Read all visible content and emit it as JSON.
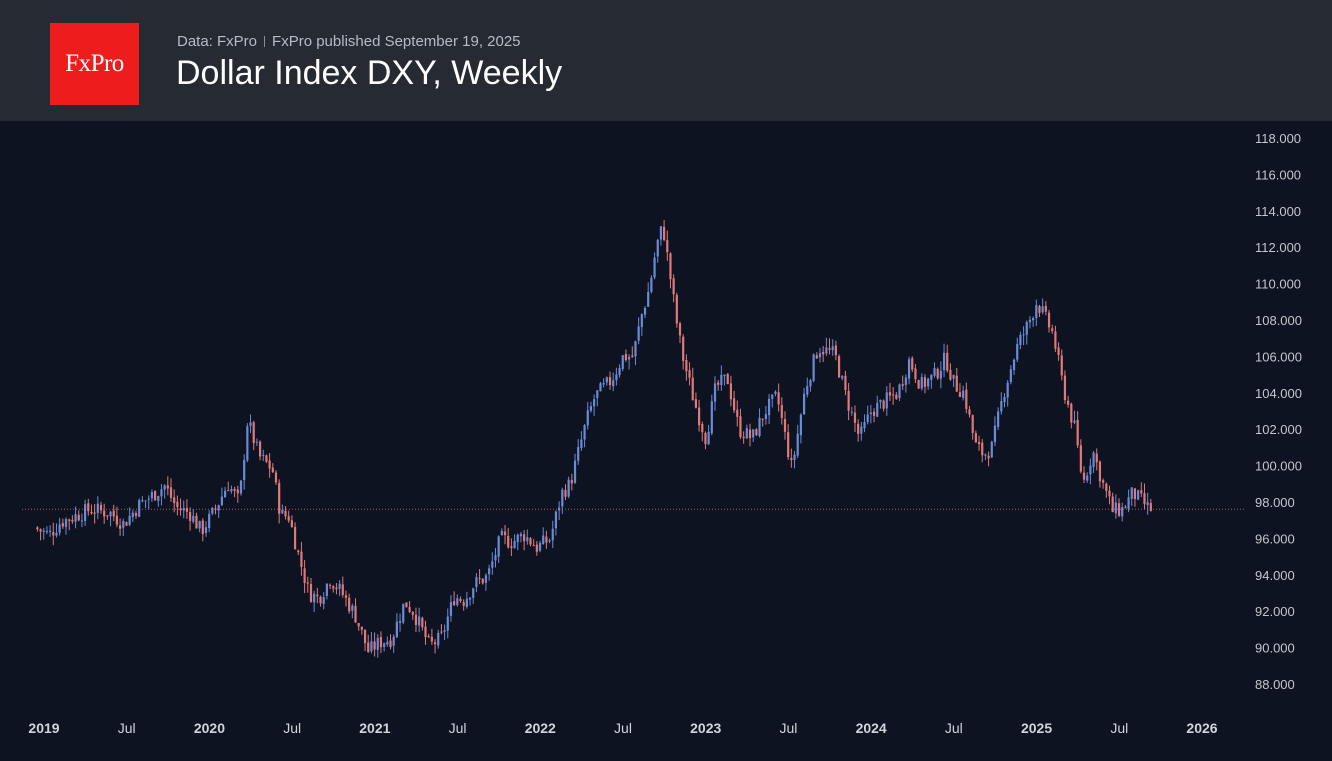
{
  "header": {
    "logo_text": "FxPro",
    "data_source": "Data: FxPro",
    "published": "FxPro published September 19, 2025",
    "title": "Dollar Index DXY, Weekly"
  },
  "colors": {
    "header_bg": "#262a33",
    "chart_bg": "#0d1321",
    "logo_bg": "#ee1c1c",
    "up": "#6b8bd6",
    "down": "#e07a78",
    "price_line": "#e07a78"
  },
  "chart_data": {
    "type": "candlestick",
    "title": "Dollar Index DXY, Weekly",
    "timeframe": "Weekly",
    "ylim": [
      87,
      118.5
    ],
    "y_ticks": [
      "118.000",
      "116.000",
      "114.000",
      "112.000",
      "110.000",
      "108.000",
      "106.000",
      "104.000",
      "102.000",
      "100.000",
      "98.000",
      "96.000",
      "94.000",
      "92.000",
      "90.000",
      "88.000"
    ],
    "x_range": [
      2018.96,
      2026.35
    ],
    "x_ticks": [
      {
        "label": "2019",
        "t": 2019.0,
        "major": true
      },
      {
        "label": "Jul",
        "t": 2019.5,
        "major": false
      },
      {
        "label": "2020",
        "t": 2020.0,
        "major": true
      },
      {
        "label": "Jul",
        "t": 2020.5,
        "major": false
      },
      {
        "label": "2021",
        "t": 2021.0,
        "major": true
      },
      {
        "label": "Jul",
        "t": 2021.5,
        "major": false
      },
      {
        "label": "2022",
        "t": 2022.0,
        "major": true
      },
      {
        "label": "Jul",
        "t": 2022.5,
        "major": false
      },
      {
        "label": "2023",
        "t": 2023.0,
        "major": true
      },
      {
        "label": "Jul",
        "t": 2023.5,
        "major": false
      },
      {
        "label": "2024",
        "t": 2024.0,
        "major": true
      },
      {
        "label": "Jul",
        "t": 2024.5,
        "major": false
      },
      {
        "label": "2025",
        "t": 2025.0,
        "major": true
      },
      {
        "label": "Jul",
        "t": 2025.5,
        "major": false
      },
      {
        "label": "2026",
        "t": 2026.0,
        "major": true
      }
    ],
    "price_line": 97.6,
    "series_anchors": {
      "t": [
        2018.96,
        2019.05,
        2019.12,
        2019.2,
        2019.3,
        2019.42,
        2019.5,
        2019.6,
        2019.68,
        2019.75,
        2019.82,
        2019.9,
        2019.97,
        2020.05,
        2020.13,
        2020.2,
        2020.25,
        2020.32,
        2020.4,
        2020.45,
        2020.5,
        2020.56,
        2020.62,
        2020.68,
        2020.75,
        2020.82,
        2020.9,
        2020.98,
        2021.05,
        2021.12,
        2021.2,
        2021.25,
        2021.35,
        2021.42,
        2021.5,
        2021.56,
        2021.62,
        2021.7,
        2021.78,
        2021.85,
        2021.92,
        2022.0,
        2022.08,
        2022.15,
        2022.2,
        2022.3,
        2022.35,
        2022.45,
        2022.52,
        2022.58,
        2022.63,
        2022.68,
        2022.72,
        2022.76,
        2022.8,
        2022.85,
        2022.88,
        2022.95,
        2023.02,
        2023.08,
        2023.15,
        2023.22,
        2023.3,
        2023.38,
        2023.45,
        2023.54,
        2023.62,
        2023.7,
        2023.8,
        2023.87,
        2023.95,
        2024.02,
        2024.1,
        2024.18,
        2024.25,
        2024.32,
        2024.4,
        2024.47,
        2024.52,
        2024.58,
        2024.65,
        2024.7,
        2024.75,
        2024.82,
        2024.9,
        2024.97,
        2025.02,
        2025.05,
        2025.12,
        2025.18,
        2025.25,
        2025.3,
        2025.36,
        2025.42,
        2025.48,
        2025.54,
        2025.6,
        2025.66,
        2025.7
      ],
      "v": [
        96.6,
        96.2,
        96.9,
        97.2,
        97.6,
        97.4,
        96.8,
        97.9,
        98.4,
        98.9,
        97.7,
        97.4,
        96.4,
        97.5,
        99.0,
        98.0,
        102.5,
        100.5,
        99.8,
        97.3,
        97.2,
        95.0,
        93.0,
        92.7,
        93.8,
        93.0,
        91.8,
        89.8,
        90.3,
        90.5,
        92.5,
        92.0,
        90.1,
        90.5,
        92.8,
        92.6,
        93.5,
        93.9,
        96.0,
        95.8,
        96.2,
        95.5,
        96.0,
        98.5,
        99.0,
        102.5,
        103.8,
        104.7,
        106.0,
        106.0,
        108.2,
        109.8,
        112.0,
        113.2,
        110.7,
        107.5,
        106.0,
        103.5,
        101.5,
        104.3,
        104.8,
        102.0,
        101.5,
        103.0,
        103.8,
        99.8,
        104.2,
        106.5,
        106.1,
        103.7,
        101.5,
        103.0,
        103.5,
        104.0,
        105.8,
        104.4,
        104.9,
        105.9,
        104.5,
        104.0,
        101.1,
        100.6,
        101.0,
        104.0,
        106.5,
        107.8,
        109.0,
        108.5,
        107.2,
        104.3,
        102.0,
        99.0,
        100.8,
        99.0,
        97.5,
        97.6,
        98.5,
        98.0,
        97.6
      ]
    }
  }
}
